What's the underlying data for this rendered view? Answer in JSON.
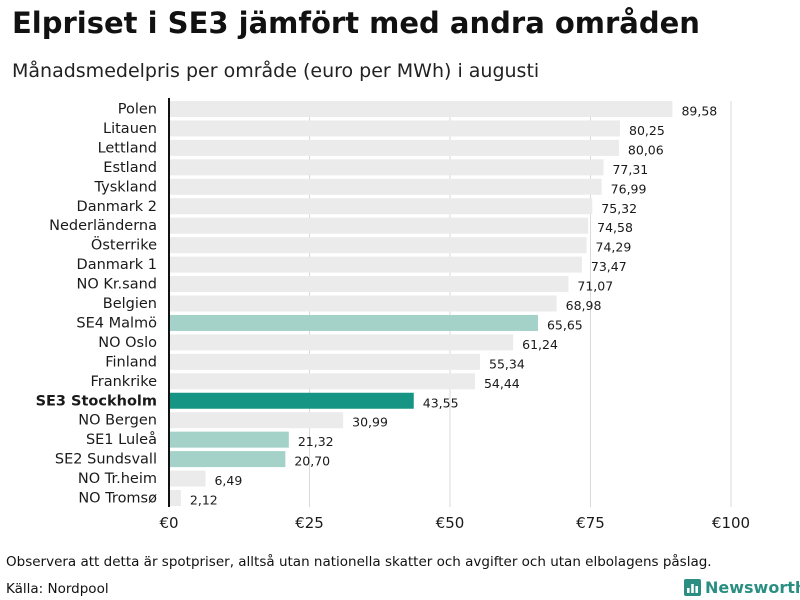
{
  "title": "Elpriset i SE3 jämfört med andra områden",
  "subtitle": "Månadsmedelpris per område (euro per MWh) i augusti",
  "footnote": "Observera att detta är spotpriser, alltså utan nationella skatter och avgifter och utan elbolagens påslag.",
  "source": "Källa: Nordpool",
  "brand": {
    "name": "Newsworthy",
    "icon": "newsworthy-logo-icon"
  },
  "colors": {
    "default": "#ebebeb",
    "se_other": "#a4d1c8",
    "se3": "#169584",
    "grid": "#d9d9d9",
    "axis": "#111111"
  },
  "chart_data": {
    "type": "bar",
    "orientation": "horizontal",
    "title": "Elpriset i SE3 jämfört med andra områden",
    "subtitle": "Månadsmedelpris per område (euro per MWh) i augusti",
    "xlabel": "",
    "ylabel": "",
    "xlim": [
      0,
      100
    ],
    "xticks": [
      0,
      25,
      50,
      75,
      100
    ],
    "xtick_labels": [
      "€0",
      "€25",
      "€50",
      "€75",
      "€100"
    ],
    "grid": true,
    "categories": [
      "Polen",
      "Litauen",
      "Lettland",
      "Estland",
      "Tyskland",
      "Danmark 2",
      "Nederländerna",
      "Österrike",
      "Danmark 1",
      "NO Kr.sand",
      "Belgien",
      "SE4 Malmö",
      "NO Oslo",
      "Finland",
      "Frankrike",
      "SE3 Stockholm",
      "NO Bergen",
      "SE1 Luleå",
      "SE2 Sundsvall",
      "NO Tr.heim",
      "NO Tromsø"
    ],
    "values": [
      89.58,
      80.25,
      80.06,
      77.31,
      76.99,
      75.32,
      74.58,
      74.29,
      73.47,
      71.07,
      68.98,
      65.65,
      61.24,
      55.34,
      54.44,
      43.55,
      30.99,
      21.32,
      20.7,
      6.49,
      2.12
    ],
    "value_labels": [
      "89,58",
      "80,25",
      "80,06",
      "77,31",
      "76,99",
      "75,32",
      "74,58",
      "74,29",
      "73,47",
      "71,07",
      "68,98",
      "65,65",
      "61,24",
      "55,34",
      "54,44",
      "43,55",
      "30,99",
      "21,32",
      "20,70",
      "6,49",
      "2,12"
    ],
    "highlight": [
      "none",
      "none",
      "none",
      "none",
      "none",
      "none",
      "none",
      "none",
      "none",
      "none",
      "none",
      "se_other",
      "none",
      "none",
      "none",
      "se3",
      "none",
      "se_other",
      "se_other",
      "none",
      "none"
    ]
  }
}
